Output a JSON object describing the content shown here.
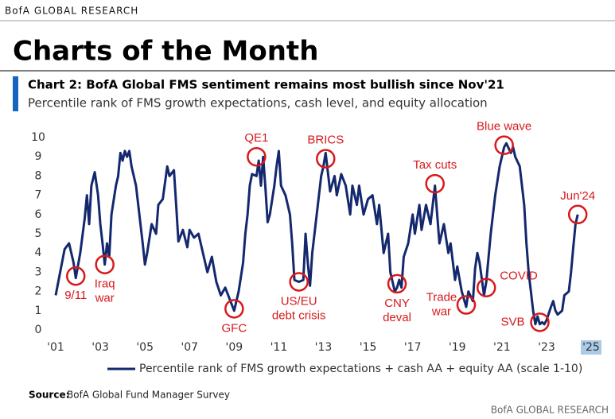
{
  "header": "BofA GLOBAL RESEARCH",
  "page_title": "Charts of the Month",
  "source_label": "Source:",
  "source": "BofA Global Fund Manager Survey",
  "footer": "BofA GLOBAL RESEARCH",
  "chart_data": {
    "type": "line",
    "title": "Chart 2: BofA Global FMS sentiment remains most bullish since Nov'21",
    "subtitle": "Percentile rank of FMS growth expectations, cash level, and equity allocation",
    "xlim": [
      2001,
      2025
    ],
    "ylim": [
      0,
      10
    ],
    "yticks": [
      0,
      1,
      2,
      3,
      4,
      5,
      6,
      7,
      8,
      9,
      10
    ],
    "xticks": [
      {
        "value": 2001,
        "label": "'01"
      },
      {
        "value": 2003,
        "label": "'03"
      },
      {
        "value": 2005,
        "label": "'05"
      },
      {
        "value": 2007,
        "label": "'07"
      },
      {
        "value": 2009,
        "label": "'09"
      },
      {
        "value": 2011,
        "label": "'11"
      },
      {
        "value": 2013,
        "label": "'13"
      },
      {
        "value": 2015,
        "label": "'15"
      },
      {
        "value": 2017,
        "label": "'17"
      },
      {
        "value": 2019,
        "label": "'19"
      },
      {
        "value": 2021,
        "label": "'21"
      },
      {
        "value": 2023,
        "label": "'23"
      },
      {
        "value": 2025,
        "label": "'25"
      }
    ],
    "grid": false,
    "x": [
      2001.0,
      2001.2,
      2001.4,
      2001.6,
      2001.8,
      2001.9,
      2002.1,
      2002.3,
      2002.4,
      2002.5,
      2002.6,
      2002.75,
      2002.9,
      2003.0,
      2003.1,
      2003.2,
      2003.3,
      2003.4,
      2003.5,
      2003.7,
      2003.8,
      2003.9,
      2004.0,
      2004.1,
      2004.2,
      2004.3,
      2004.4,
      2004.6,
      2004.7,
      2004.8,
      2004.9,
      2005.0,
      2005.1,
      2005.3,
      2005.5,
      2005.6,
      2005.8,
      2006.0,
      2006.1,
      2006.3,
      2006.4,
      2006.5,
      2006.7,
      2006.9,
      2007.0,
      2007.2,
      2007.4,
      2007.6,
      2007.8,
      2008.0,
      2008.2,
      2008.4,
      2008.6,
      2008.8,
      2009.0,
      2009.2,
      2009.4,
      2009.5,
      2009.6,
      2009.7,
      2009.8,
      2010.0,
      2010.1,
      2010.2,
      2010.3,
      2010.4,
      2010.5,
      2010.6,
      2010.8,
      2010.9,
      2011.0,
      2011.1,
      2011.3,
      2011.5,
      2011.6,
      2011.7,
      2011.9,
      2012.1,
      2012.2,
      2012.3,
      2012.4,
      2012.5,
      2012.7,
      2012.9,
      2013.0,
      2013.1,
      2013.3,
      2013.5,
      2013.6,
      2013.8,
      2014.0,
      2014.2,
      2014.3,
      2014.5,
      2014.6,
      2014.8,
      2015.0,
      2015.2,
      2015.4,
      2015.5,
      2015.7,
      2015.9,
      2016.0,
      2016.2,
      2016.3,
      2016.4,
      2016.5,
      2016.6,
      2016.8,
      2017.0,
      2017.1,
      2017.3,
      2017.4,
      2017.6,
      2017.8,
      2017.9,
      2018.0,
      2018.1,
      2018.2,
      2018.4,
      2018.6,
      2018.7,
      2018.9,
      2019.0,
      2019.2,
      2019.4,
      2019.5,
      2019.7,
      2019.8,
      2019.9,
      2020.0,
      2020.2,
      2020.3,
      2020.5,
      2020.7,
      2020.9,
      2021.0,
      2021.1,
      2021.2,
      2021.4,
      2021.5,
      2021.6,
      2021.8,
      2022.0,
      2022.1,
      2022.2,
      2022.3,
      2022.4,
      2022.5,
      2022.6,
      2022.7,
      2022.8,
      2022.9,
      2023.0,
      2023.2,
      2023.3,
      2023.4,
      2023.5,
      2023.7,
      2023.8,
      2024.0,
      2024.1,
      2024.2,
      2024.3,
      2024.4
    ],
    "series": [
      {
        "name": "Percentile rank of FMS growth expectations + cash AA + equity AA (scale 1-10)",
        "color": "#14286e",
        "values": [
          1.8,
          3.0,
          4.2,
          4.5,
          3.5,
          2.7,
          4.0,
          5.8,
          7.0,
          5.5,
          7.5,
          8.2,
          7.0,
          5.5,
          4.5,
          3.4,
          4.5,
          3.8,
          6.0,
          7.5,
          8.0,
          9.2,
          8.8,
          9.3,
          9.0,
          9.3,
          8.5,
          7.5,
          6.5,
          5.5,
          4.5,
          3.4,
          4.0,
          5.5,
          5.0,
          6.5,
          6.8,
          8.5,
          8.0,
          8.3,
          6.5,
          4.6,
          5.2,
          4.3,
          5.2,
          4.8,
          5.0,
          4.0,
          3.0,
          3.8,
          2.5,
          1.8,
          2.2,
          1.6,
          1.0,
          2.0,
          3.5,
          5.0,
          6.0,
          7.5,
          8.1,
          8.0,
          8.8,
          7.5,
          9.0,
          7.4,
          5.6,
          6.0,
          7.5,
          8.5,
          9.3,
          7.5,
          7.0,
          6.0,
          4.5,
          2.6,
          2.5,
          2.6,
          5.0,
          3.5,
          2.3,
          4.0,
          6.0,
          8.0,
          8.5,
          9.2,
          7.2,
          8.0,
          7.0,
          8.1,
          7.5,
          6.0,
          7.5,
          6.5,
          7.5,
          6.0,
          6.8,
          7.0,
          5.5,
          6.5,
          4.0,
          5.0,
          3.0,
          2.0,
          2.2,
          2.6,
          2.2,
          3.8,
          4.5,
          6.0,
          5.0,
          6.5,
          5.2,
          6.5,
          5.5,
          6.5,
          7.5,
          6.0,
          4.5,
          5.5,
          4.0,
          4.5,
          2.6,
          3.3,
          2.0,
          1.2,
          2.0,
          1.5,
          3.2,
          4.0,
          3.5,
          1.8,
          2.5,
          5.0,
          7.0,
          8.5,
          9.0,
          9.5,
          9.7,
          9.2,
          9.5,
          9.0,
          8.5,
          6.5,
          4.5,
          3.0,
          2.0,
          1.0,
          0.3,
          0.7,
          0.3,
          0.4,
          0.3,
          0.5,
          1.2,
          1.5,
          1.0,
          0.8,
          1.0,
          1.8,
          2.0,
          3.0,
          4.3,
          5.5,
          6.0
        ]
      }
    ],
    "annotation_color": "#d7191c",
    "annotations": [
      {
        "lines": [
          "9/11"
        ],
        "x": 2001.9,
        "y": 2.8,
        "pos": "below"
      },
      {
        "lines": [
          "Iraq",
          "war"
        ],
        "x": 2003.2,
        "y": 3.4,
        "pos": "below"
      },
      {
        "lines": [
          "GFC"
        ],
        "x": 2009.0,
        "y": 1.1,
        "pos": "below"
      },
      {
        "lines": [
          "QE1"
        ],
        "x": 2010.0,
        "y": 9.0,
        "pos": "above"
      },
      {
        "lines": [
          "US/EU",
          "debt crisis"
        ],
        "x": 2011.9,
        "y": 2.5,
        "pos": "below"
      },
      {
        "lines": [
          "BRICS"
        ],
        "x": 2013.1,
        "y": 8.9,
        "pos": "above"
      },
      {
        "lines": [
          "CNY",
          "deval"
        ],
        "x": 2016.3,
        "y": 2.4,
        "pos": "below"
      },
      {
        "lines": [
          "Tax cuts"
        ],
        "x": 2018.0,
        "y": 7.6,
        "pos": "above"
      },
      {
        "lines": [
          "Trade",
          "war"
        ],
        "x": 2019.4,
        "y": 1.3,
        "pos": "left"
      },
      {
        "lines": [
          "COVID"
        ],
        "x": 2020.3,
        "y": 2.2,
        "pos": "right"
      },
      {
        "lines": [
          "Blue wave"
        ],
        "x": 2021.1,
        "y": 9.6,
        "pos": "above"
      },
      {
        "lines": [
          "SVB"
        ],
        "x": 2022.7,
        "y": 0.4,
        "pos": "left"
      },
      {
        "lines": [
          "Jun'24"
        ],
        "x": 2024.4,
        "y": 6.0,
        "pos": "above"
      }
    ]
  }
}
